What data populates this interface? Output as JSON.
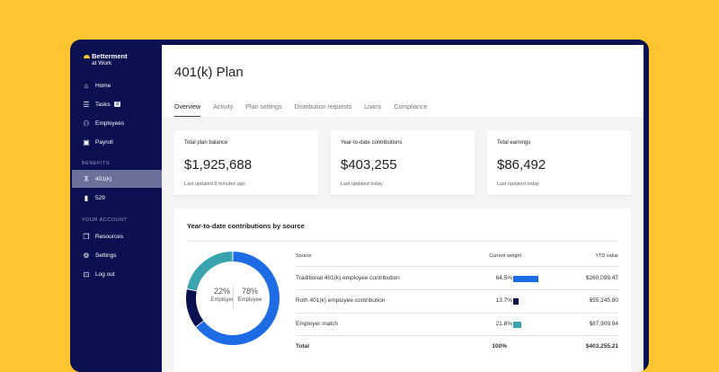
{
  "brand": {
    "name": "Betterment",
    "sub": "at Work"
  },
  "sidebar": {
    "items": [
      {
        "label": "Home",
        "icon": "home-icon"
      },
      {
        "label": "Tasks",
        "icon": "list-icon",
        "badge": "3"
      },
      {
        "label": "Employees",
        "icon": "person-icon"
      },
      {
        "label": "Payroll",
        "icon": "money-icon"
      }
    ],
    "benefits_label": "BENEFITS",
    "benefits": [
      {
        "label": "401(k)",
        "icon": "presentation-icon",
        "active": true
      },
      {
        "label": "529",
        "icon": "book-icon"
      }
    ],
    "account_label": "YOUR ACCOUNT",
    "account": [
      {
        "label": "Resources",
        "icon": "documents-icon"
      },
      {
        "label": "Settings",
        "icon": "gears-icon"
      },
      {
        "label": "Log out",
        "icon": "lock-icon"
      }
    ]
  },
  "header": {
    "title": "401(k) Plan",
    "tabs": [
      "Overview",
      "Activity",
      "Plan settings",
      "Distribution requests",
      "Loans",
      "Compliance"
    ],
    "active_tab": "Overview"
  },
  "cards": [
    {
      "label": "Total plan balance",
      "value": "$1,925,688",
      "updated": "Last updated 8 minutes ago"
    },
    {
      "label": "Year-to-date contributions",
      "value": "$403,255",
      "updated": "Last updated today"
    },
    {
      "label": "Total earnings",
      "value": "$86,492",
      "updated": "Last updated today"
    }
  ],
  "contributions": {
    "title": "Year-to-date contributions by source",
    "donut": {
      "employer_pct": "22%",
      "employer_label": "Employer",
      "employee_pct": "78%",
      "employee_label": "Employee"
    },
    "columns": [
      "Source",
      "Current weight",
      "YTD value"
    ],
    "rows": [
      {
        "source": "Traditional 401(k) employee contribution",
        "weight": "64.5%",
        "weight_value": 64.5,
        "ytd": "$260,099.47",
        "color": "#1E6BE6"
      },
      {
        "source": "Roth 401(k) employee contribution",
        "weight": "13.7%",
        "weight_value": 13.7,
        "ytd": "$55,245.80",
        "color": "#0B1050"
      },
      {
        "source": "Employer match",
        "weight": "21.8%",
        "weight_value": 21.8,
        "ytd": "$87,909.94",
        "color": "#3AA3B0"
      }
    ],
    "total": {
      "label": "Total",
      "weight": "100%",
      "ytd": "$403,255.21"
    }
  },
  "colors": {
    "background": "#FFC530",
    "sidebar": "#0B1050",
    "active_nav": "#6B6F9A"
  }
}
